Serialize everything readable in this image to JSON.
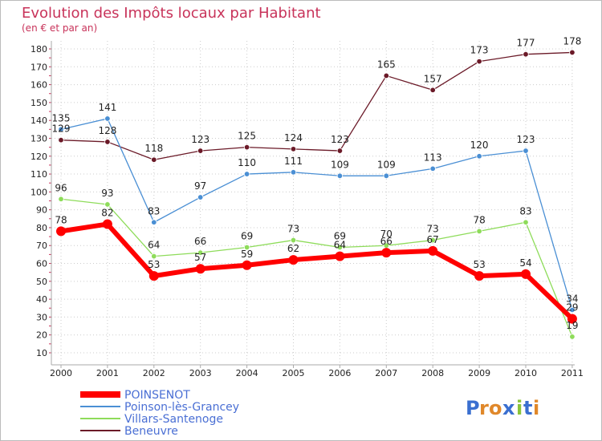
{
  "chart_data": {
    "type": "line",
    "title": "Evolution des Impôts locaux par Habitant",
    "subtitle": "(en € et par an)",
    "x": [
      "2000",
      "2001",
      "2002",
      "2003",
      "2004",
      "2005",
      "2006",
      "2007",
      "2008",
      "2009",
      "2010",
      "2011"
    ],
    "y_ticks": [
      "10",
      "20",
      "30",
      "40",
      "50",
      "60",
      "70",
      "80",
      "90",
      "100",
      "110",
      "120",
      "130",
      "140",
      "150",
      "160",
      "170",
      "180"
    ],
    "ylim": [
      10,
      180
    ],
    "grid": true,
    "legend_position": "bottom-left",
    "series": [
      {
        "name": "POINSENOT",
        "color": "#ff0000",
        "values": [
          78,
          82,
          53,
          57,
          59,
          62,
          64,
          66,
          67,
          53,
          54,
          29
        ],
        "labels": [
          "78",
          "82",
          "53",
          "57",
          "59",
          "62",
          "64",
          "66",
          "67",
          "53",
          "54",
          "29"
        ]
      },
      {
        "name": "Poinson-lès-Grancey",
        "color": "#4a8fd4",
        "values": [
          135,
          141,
          83,
          97,
          110,
          111,
          109,
          109,
          113,
          120,
          123,
          34
        ],
        "labels": [
          "135",
          "141",
          "83",
          "97",
          "110",
          "111",
          "109",
          "109",
          "113",
          "120",
          "123",
          "34"
        ]
      },
      {
        "name": "Villars-Santenoge",
        "color": "#8edc5a",
        "values": [
          96,
          93,
          64,
          66,
          69,
          73,
          69,
          70,
          73,
          78,
          83,
          19
        ],
        "labels": [
          "96",
          "93",
          "64",
          "66",
          "69",
          "73",
          "69",
          "70",
          "73",
          "78",
          "83",
          "19"
        ]
      },
      {
        "name": "Beneuvre",
        "color": "#6b1a28",
        "values": [
          129,
          128,
          118,
          123,
          125,
          124,
          123,
          165,
          157,
          173,
          177,
          178
        ],
        "labels": [
          "129",
          "128",
          "118",
          "123",
          "125",
          "124",
          "123",
          "165",
          "157",
          "173",
          "177",
          "178"
        ]
      }
    ],
    "colors": {
      "title": "#c8335a",
      "axis": "#aaaaaa",
      "grid": "#cccccc"
    }
  },
  "logo": {
    "text": "Proxiti"
  }
}
